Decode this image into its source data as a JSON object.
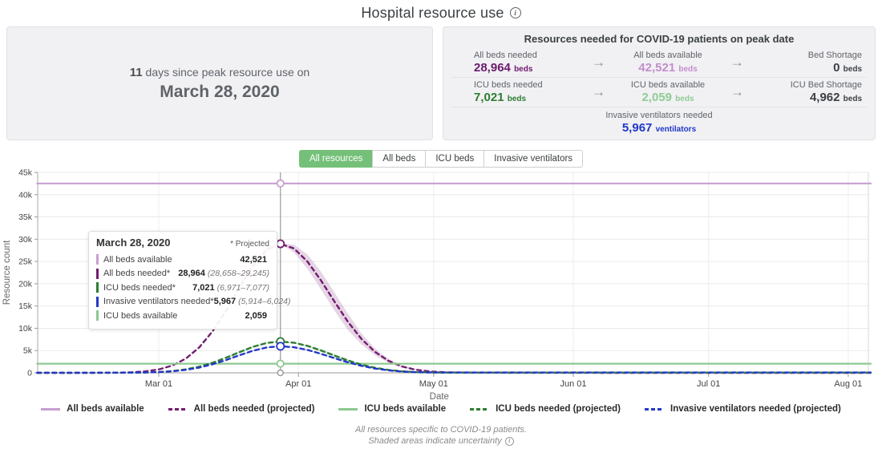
{
  "header": {
    "title": "Hospital resource use"
  },
  "peak_card": {
    "days": "11",
    "text": " days since peak resource use on",
    "date": "March 28, 2020"
  },
  "resources_card": {
    "title": "Resources needed for COVID-19 patients on peak date",
    "rows": [
      {
        "cells": [
          {
            "label": "All beds needed",
            "value": "28,964",
            "unit": "beds",
            "color": "#6d1a6b"
          },
          {
            "label": "All beds available",
            "value": "42,521",
            "unit": "beds",
            "color": "#c48ecb"
          },
          {
            "label": "Bed Shortage",
            "value": "0",
            "unit": "beds",
            "color": "#3c4043"
          }
        ]
      },
      {
        "cells": [
          {
            "label": "ICU beds needed",
            "value": "7,021",
            "unit": "beds",
            "color": "#2e7d32"
          },
          {
            "label": "ICU beds available",
            "value": "2,059",
            "unit": "beds",
            "color": "#90cc93"
          },
          {
            "label": "ICU Bed Shortage",
            "value": "4,962",
            "unit": "beds",
            "color": "#3c4043"
          }
        ]
      }
    ],
    "footer_cell": {
      "label": "Invasive ventilators needed",
      "value": "5,967",
      "unit": "ventilators",
      "color": "#2038c8"
    }
  },
  "tabs": [
    {
      "label": "All resources",
      "selected": true
    },
    {
      "label": "All beds",
      "selected": false
    },
    {
      "label": "ICU beds",
      "selected": false
    },
    {
      "label": "Invasive ventilators",
      "selected": false
    }
  ],
  "tooltip": {
    "date": "March 28, 2020",
    "projected_note": "* Projected",
    "rows": [
      {
        "label": "All beds available",
        "value": "42,521",
        "range": "",
        "color": "#c79fd1"
      },
      {
        "label": "All beds needed*",
        "value": "28,964",
        "range": "(28,658–29,245)",
        "color": "#731d70"
      },
      {
        "label": "ICU beds needed*",
        "value": "7,021",
        "range": "(6,971–7,077)",
        "color": "#2e7d32"
      },
      {
        "label": "Invasive ventilators needed*",
        "value": "5,967",
        "range": "(5,914–6,024)",
        "color": "#2438c8"
      },
      {
        "label": "ICU beds available",
        "value": "2,059",
        "range": "",
        "color": "#8dc891"
      }
    ]
  },
  "chart_data": {
    "type": "line",
    "xlabel": "Date",
    "ylabel": "Resource count",
    "ylim": [
      0,
      45000
    ],
    "y_ticks": [
      {
        "label": "0",
        "v": 0
      },
      {
        "label": "5k",
        "v": 5000
      },
      {
        "label": "10k",
        "v": 10000
      },
      {
        "label": "15k",
        "v": 15000
      },
      {
        "label": "20k",
        "v": 20000
      },
      {
        "label": "25k",
        "v": 25000
      },
      {
        "label": "30k",
        "v": 30000
      },
      {
        "label": "35k",
        "v": 35000
      },
      {
        "label": "40k",
        "v": 40000
      },
      {
        "label": "45k",
        "v": 45000
      }
    ],
    "x_ticks": [
      {
        "label": "Mar 01",
        "day": 0
      },
      {
        "label": "Apr 01",
        "day": 31
      },
      {
        "label": "May 01",
        "day": 61
      },
      {
        "label": "Jun 01",
        "day": 92
      },
      {
        "label": "Jul 01",
        "day": 122
      },
      {
        "label": "Aug 01",
        "day": 153
      }
    ],
    "x_range_days": [
      -27,
      158
    ],
    "peak_day": 27,
    "peak_date_label": "March 28, 2020",
    "series": [
      {
        "name": "All beds available",
        "color": "#c79fd1",
        "dashed": false,
        "band_pct": 0,
        "points": [
          [
            -27,
            42521
          ],
          [
            158,
            42521
          ]
        ]
      },
      {
        "name": "All beds needed (projected)",
        "color": "#731d70",
        "dashed": true,
        "band_pct": 0.16,
        "band_days": [
          18,
          66
        ],
        "points": [
          [
            -27,
            0
          ],
          [
            -15,
            0
          ],
          [
            -9,
            40
          ],
          [
            -6,
            130
          ],
          [
            -3,
            320
          ],
          [
            0,
            760
          ],
          [
            3,
            1630
          ],
          [
            6,
            3190
          ],
          [
            9,
            5730
          ],
          [
            12,
            9400
          ],
          [
            15,
            14100
          ],
          [
            18,
            19320
          ],
          [
            21,
            24190
          ],
          [
            24,
            27690
          ],
          [
            27,
            28964
          ],
          [
            30,
            27910
          ],
          [
            33,
            24960
          ],
          [
            36,
            20730
          ],
          [
            39,
            15980
          ],
          [
            42,
            11430
          ],
          [
            45,
            7590
          ],
          [
            48,
            4680
          ],
          [
            51,
            2680
          ],
          [
            54,
            1430
          ],
          [
            57,
            700
          ],
          [
            60,
            320
          ],
          [
            64,
            100
          ],
          [
            70,
            30
          ],
          [
            80,
            10
          ],
          [
            100,
            5
          ],
          [
            158,
            5
          ]
        ]
      },
      {
        "name": "ICU beds available",
        "color": "#8dc891",
        "dashed": false,
        "band_pct": 0,
        "points": [
          [
            -27,
            2059
          ],
          [
            158,
            2059
          ]
        ]
      },
      {
        "name": "ICU beds needed (projected)",
        "color": "#2e7d32",
        "dashed": true,
        "band_pct": 0.1,
        "band_days": [
          14,
          54
        ],
        "points": [
          [
            -27,
            0
          ],
          [
            -9,
            10
          ],
          [
            -3,
            80
          ],
          [
            0,
            180
          ],
          [
            3,
            395
          ],
          [
            6,
            775
          ],
          [
            9,
            1390
          ],
          [
            12,
            2280
          ],
          [
            15,
            3420
          ],
          [
            18,
            4680
          ],
          [
            21,
            5860
          ],
          [
            24,
            6710
          ],
          [
            27,
            7021
          ],
          [
            30,
            6760
          ],
          [
            33,
            6050
          ],
          [
            36,
            5020
          ],
          [
            39,
            3870
          ],
          [
            42,
            2770
          ],
          [
            45,
            1840
          ],
          [
            48,
            1130
          ],
          [
            51,
            650
          ],
          [
            54,
            345
          ],
          [
            57,
            170
          ],
          [
            60,
            80
          ],
          [
            64,
            45
          ],
          [
            70,
            40
          ],
          [
            80,
            40
          ],
          [
            158,
            40
          ]
        ]
      },
      {
        "name": "Invasive ventilators needed (projected)",
        "color": "#2438c8",
        "dashed": true,
        "band_pct": 0.08,
        "band_days": [
          14,
          54
        ],
        "points": [
          [
            -27,
            15
          ],
          [
            -15,
            20
          ],
          [
            -9,
            40
          ],
          [
            -3,
            90
          ],
          [
            0,
            160
          ],
          [
            3,
            335
          ],
          [
            6,
            660
          ],
          [
            9,
            1180
          ],
          [
            12,
            1940
          ],
          [
            15,
            2900
          ],
          [
            18,
            3980
          ],
          [
            21,
            4980
          ],
          [
            24,
            5700
          ],
          [
            27,
            5967
          ],
          [
            30,
            5750
          ],
          [
            33,
            5140
          ],
          [
            36,
            4270
          ],
          [
            39,
            3290
          ],
          [
            42,
            2350
          ],
          [
            45,
            1560
          ],
          [
            48,
            960
          ],
          [
            51,
            550
          ],
          [
            54,
            295
          ],
          [
            57,
            145
          ],
          [
            60,
            90
          ],
          [
            64,
            70
          ],
          [
            70,
            65
          ],
          [
            80,
            65
          ],
          [
            158,
            65
          ]
        ]
      }
    ]
  },
  "legend": [
    {
      "label": "All beds available",
      "color": "#c79fd1",
      "dashed": false
    },
    {
      "label": "All beds needed (projected)",
      "color": "#731d70",
      "dashed": true
    },
    {
      "label": "ICU beds available",
      "color": "#8dc891",
      "dashed": false
    },
    {
      "label": "ICU beds needed (projected)",
      "color": "#2e7d32",
      "dashed": true
    },
    {
      "label": "Invasive ventilators needed (projected)",
      "color": "#2438c8",
      "dashed": true
    }
  ],
  "footnotes": [
    "All resources specific to COVID-19 patients.",
    "Shaded areas indicate uncertainty"
  ]
}
